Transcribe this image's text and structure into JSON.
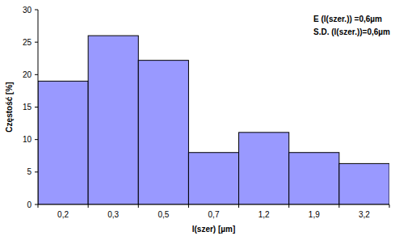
{
  "chart_data": {
    "type": "bar",
    "x_label": "l(szer) [µm]",
    "y_label": "Częstość [%]",
    "annotations": [
      "E (l(szer.)) =0,6µm",
      "S.D. (l(szer.))=0,6µm"
    ],
    "categories": [
      "0,2",
      "0,3",
      "0,5",
      "0,7",
      "1,2",
      "1,9",
      "3,2"
    ],
    "values": [
      19,
      26,
      22.2,
      8,
      11.1,
      8,
      6.3
    ],
    "color": "#9999ff",
    "ylim": [
      0,
      30
    ],
    "yticks": [
      0,
      5,
      10,
      15,
      20,
      25,
      30
    ],
    "grid": false
  }
}
